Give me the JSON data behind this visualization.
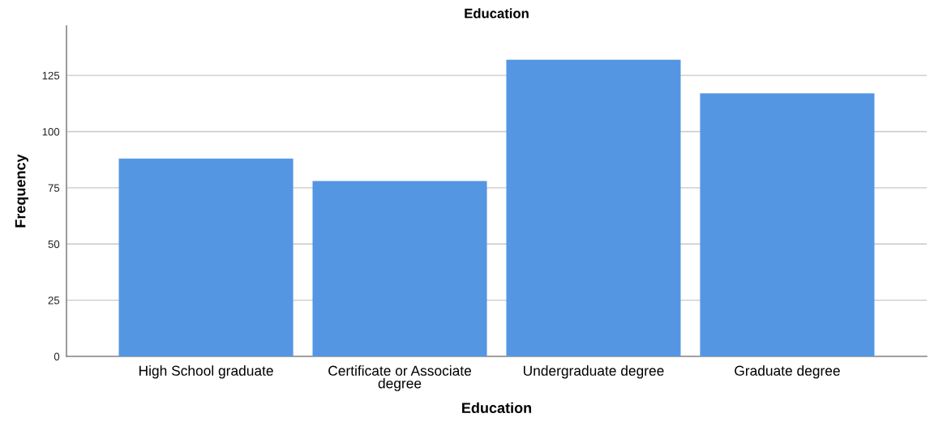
{
  "chart_data": {
    "type": "bar",
    "title": "Education",
    "xlabel": "Education",
    "ylabel": "Frequency",
    "categories": [
      "High School graduate",
      "Certificate or Associate\ndegree",
      "Undergraduate degree",
      "Graduate degree"
    ],
    "values": [
      88,
      78,
      132,
      117
    ],
    "color": "#5596e3",
    "ylim": [
      0,
      147
    ],
    "yticks": [
      0,
      25,
      50,
      75,
      100,
      125
    ],
    "grid": "y"
  }
}
